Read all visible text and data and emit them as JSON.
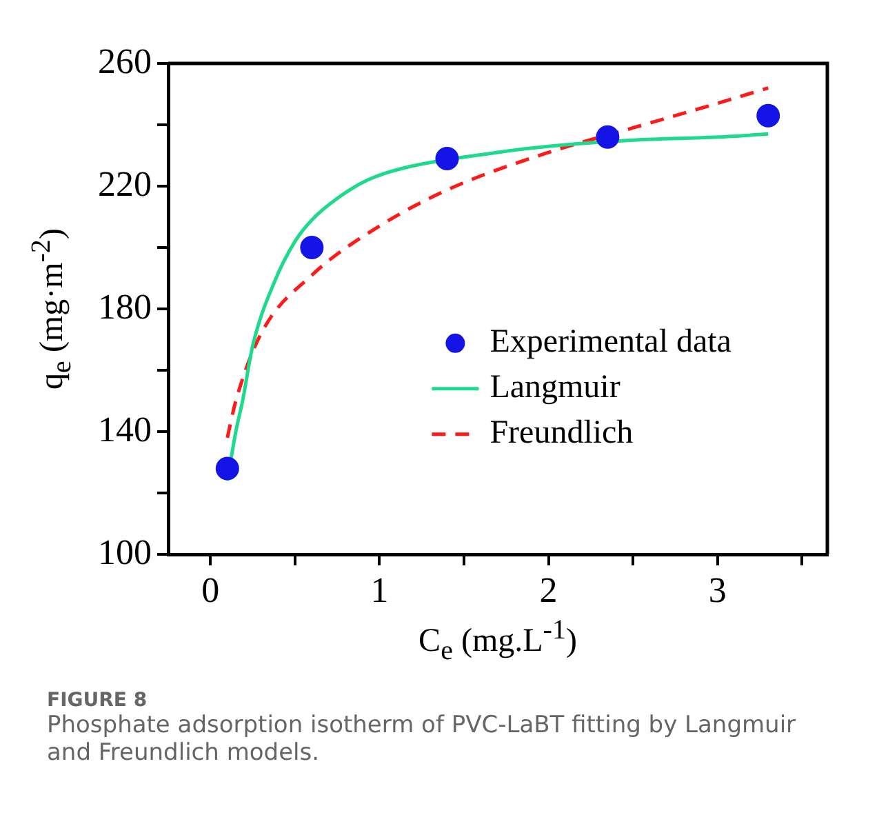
{
  "chart_data": {
    "type": "scatter",
    "xlabel": "C$_{e}$ (mg.L$^{-1}$)",
    "ylabel": "q$_{e}$ (mg·m$^{-2}$)",
    "xlim": [
      -0.25,
      3.65
    ],
    "ylim": [
      100,
      260
    ],
    "xticks": [
      0,
      {
        "value": 0.5,
        "label": null
      },
      1,
      {
        "value": 1.5,
        "label": null
      },
      2,
      {
        "value": 2.5,
        "label": null
      },
      3,
      {
        "value": 3.5,
        "label": null
      }
    ],
    "yticks": [
      100,
      {
        "value": 120,
        "label": null
      },
      140,
      {
        "value": 160,
        "label": null
      },
      180,
      {
        "value": 200,
        "label": null
      },
      220,
      {
        "value": 240,
        "label": null
      },
      260
    ],
    "grid": false,
    "legend": "right",
    "annotations": [
      "FIGURE 8",
      "Phosphate adsorption isotherm of PVC-LaBT fitting by Langmuir and Freundlich models."
    ],
    "series": [
      {
        "name": "Experimental data",
        "type": "scatter",
        "marker": "circle",
        "color": "#1414e6",
        "x": [
          0.1,
          0.6,
          1.4,
          2.35,
          3.3
        ],
        "values": [
          128,
          200,
          229,
          236,
          243
        ]
      },
      {
        "name": "Langmuir",
        "type": "line",
        "marker": "none",
        "line_style": "solid",
        "color": "#1fd98c",
        "x": [
          0.1,
          0.15,
          0.19,
          0.25,
          0.38,
          0.5,
          0.6,
          0.75,
          0.93,
          1.15,
          1.7,
          2,
          2.5,
          3,
          3.3
        ],
        "values": [
          124,
          140,
          150,
          168,
          189,
          202,
          209,
          216,
          222,
          226,
          231,
          233,
          235,
          236,
          237
        ]
      },
      {
        "name": "Freundlich",
        "type": "line",
        "marker": "none",
        "line_style": "dashed",
        "color": "#ff1a1a",
        "x": [
          0.1,
          0.15,
          0.3,
          0.6,
          1,
          1.41,
          2,
          2.5,
          3,
          3.3
        ],
        "values": [
          138,
          150,
          172,
          191,
          207,
          219,
          231,
          239,
          247,
          252
        ]
      }
    ]
  }
}
